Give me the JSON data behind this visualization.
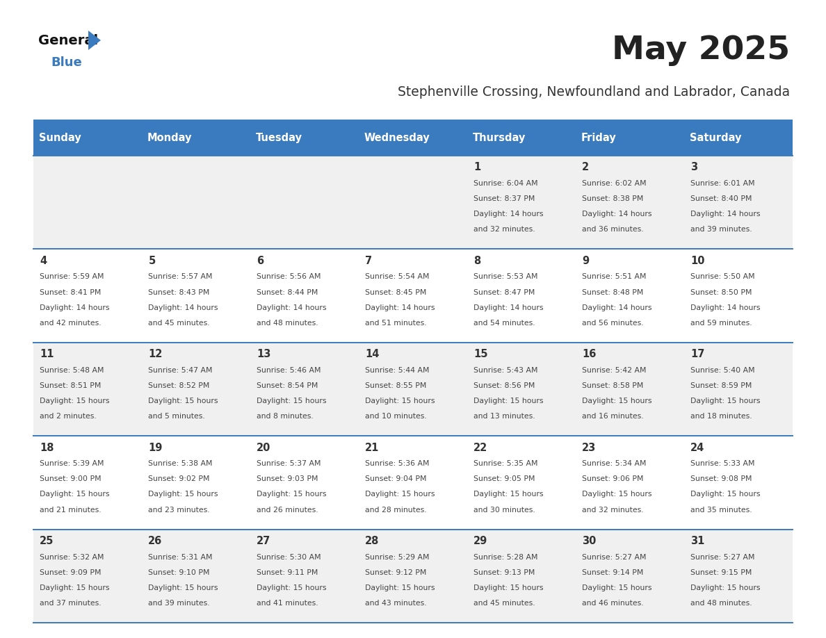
{
  "title": "May 2025",
  "subtitle": "Stephenville Crossing, Newfoundland and Labrador, Canada",
  "days_of_week": [
    "Sunday",
    "Monday",
    "Tuesday",
    "Wednesday",
    "Thursday",
    "Friday",
    "Saturday"
  ],
  "header_bg": "#3a7abf",
  "header_text": "#ffffff",
  "row_bg_odd": "#f0f0f0",
  "row_bg_even": "#ffffff",
  "cell_border": "#3a7abf",
  "day_num_color": "#333333",
  "cell_text_color": "#444444",
  "title_color": "#222222",
  "subtitle_color": "#333333",
  "calendar_data": [
    [
      {
        "day": "",
        "sunrise": "",
        "sunset": "",
        "daylight": ""
      },
      {
        "day": "",
        "sunrise": "",
        "sunset": "",
        "daylight": ""
      },
      {
        "day": "",
        "sunrise": "",
        "sunset": "",
        "daylight": ""
      },
      {
        "day": "",
        "sunrise": "",
        "sunset": "",
        "daylight": ""
      },
      {
        "day": "1",
        "sunrise": "6:04 AM",
        "sunset": "8:37 PM",
        "daylight": "14 hours and 32 minutes."
      },
      {
        "day": "2",
        "sunrise": "6:02 AM",
        "sunset": "8:38 PM",
        "daylight": "14 hours and 36 minutes."
      },
      {
        "day": "3",
        "sunrise": "6:01 AM",
        "sunset": "8:40 PM",
        "daylight": "14 hours and 39 minutes."
      }
    ],
    [
      {
        "day": "4",
        "sunrise": "5:59 AM",
        "sunset": "8:41 PM",
        "daylight": "14 hours and 42 minutes."
      },
      {
        "day": "5",
        "sunrise": "5:57 AM",
        "sunset": "8:43 PM",
        "daylight": "14 hours and 45 minutes."
      },
      {
        "day": "6",
        "sunrise": "5:56 AM",
        "sunset": "8:44 PM",
        "daylight": "14 hours and 48 minutes."
      },
      {
        "day": "7",
        "sunrise": "5:54 AM",
        "sunset": "8:45 PM",
        "daylight": "14 hours and 51 minutes."
      },
      {
        "day": "8",
        "sunrise": "5:53 AM",
        "sunset": "8:47 PM",
        "daylight": "14 hours and 54 minutes."
      },
      {
        "day": "9",
        "sunrise": "5:51 AM",
        "sunset": "8:48 PM",
        "daylight": "14 hours and 56 minutes."
      },
      {
        "day": "10",
        "sunrise": "5:50 AM",
        "sunset": "8:50 PM",
        "daylight": "14 hours and 59 minutes."
      }
    ],
    [
      {
        "day": "11",
        "sunrise": "5:48 AM",
        "sunset": "8:51 PM",
        "daylight": "15 hours and 2 minutes."
      },
      {
        "day": "12",
        "sunrise": "5:47 AM",
        "sunset": "8:52 PM",
        "daylight": "15 hours and 5 minutes."
      },
      {
        "day": "13",
        "sunrise": "5:46 AM",
        "sunset": "8:54 PM",
        "daylight": "15 hours and 8 minutes."
      },
      {
        "day": "14",
        "sunrise": "5:44 AM",
        "sunset": "8:55 PM",
        "daylight": "15 hours and 10 minutes."
      },
      {
        "day": "15",
        "sunrise": "5:43 AM",
        "sunset": "8:56 PM",
        "daylight": "15 hours and 13 minutes."
      },
      {
        "day": "16",
        "sunrise": "5:42 AM",
        "sunset": "8:58 PM",
        "daylight": "15 hours and 16 minutes."
      },
      {
        "day": "17",
        "sunrise": "5:40 AM",
        "sunset": "8:59 PM",
        "daylight": "15 hours and 18 minutes."
      }
    ],
    [
      {
        "day": "18",
        "sunrise": "5:39 AM",
        "sunset": "9:00 PM",
        "daylight": "15 hours and 21 minutes."
      },
      {
        "day": "19",
        "sunrise": "5:38 AM",
        "sunset": "9:02 PM",
        "daylight": "15 hours and 23 minutes."
      },
      {
        "day": "20",
        "sunrise": "5:37 AM",
        "sunset": "9:03 PM",
        "daylight": "15 hours and 26 minutes."
      },
      {
        "day": "21",
        "sunrise": "5:36 AM",
        "sunset": "9:04 PM",
        "daylight": "15 hours and 28 minutes."
      },
      {
        "day": "22",
        "sunrise": "5:35 AM",
        "sunset": "9:05 PM",
        "daylight": "15 hours and 30 minutes."
      },
      {
        "day": "23",
        "sunrise": "5:34 AM",
        "sunset": "9:06 PM",
        "daylight": "15 hours and 32 minutes."
      },
      {
        "day": "24",
        "sunrise": "5:33 AM",
        "sunset": "9:08 PM",
        "daylight": "15 hours and 35 minutes."
      }
    ],
    [
      {
        "day": "25",
        "sunrise": "5:32 AM",
        "sunset": "9:09 PM",
        "daylight": "15 hours and 37 minutes."
      },
      {
        "day": "26",
        "sunrise": "5:31 AM",
        "sunset": "9:10 PM",
        "daylight": "15 hours and 39 minutes."
      },
      {
        "day": "27",
        "sunrise": "5:30 AM",
        "sunset": "9:11 PM",
        "daylight": "15 hours and 41 minutes."
      },
      {
        "day": "28",
        "sunrise": "5:29 AM",
        "sunset": "9:12 PM",
        "daylight": "15 hours and 43 minutes."
      },
      {
        "day": "29",
        "sunrise": "5:28 AM",
        "sunset": "9:13 PM",
        "daylight": "15 hours and 45 minutes."
      },
      {
        "day": "30",
        "sunrise": "5:27 AM",
        "sunset": "9:14 PM",
        "daylight": "15 hours and 46 minutes."
      },
      {
        "day": "31",
        "sunrise": "5:27 AM",
        "sunset": "9:15 PM",
        "daylight": "15 hours and 48 minutes."
      }
    ]
  ],
  "logo_triangle_color": "#3a7abf",
  "figsize": [
    11.88,
    9.18
  ],
  "dpi": 100
}
